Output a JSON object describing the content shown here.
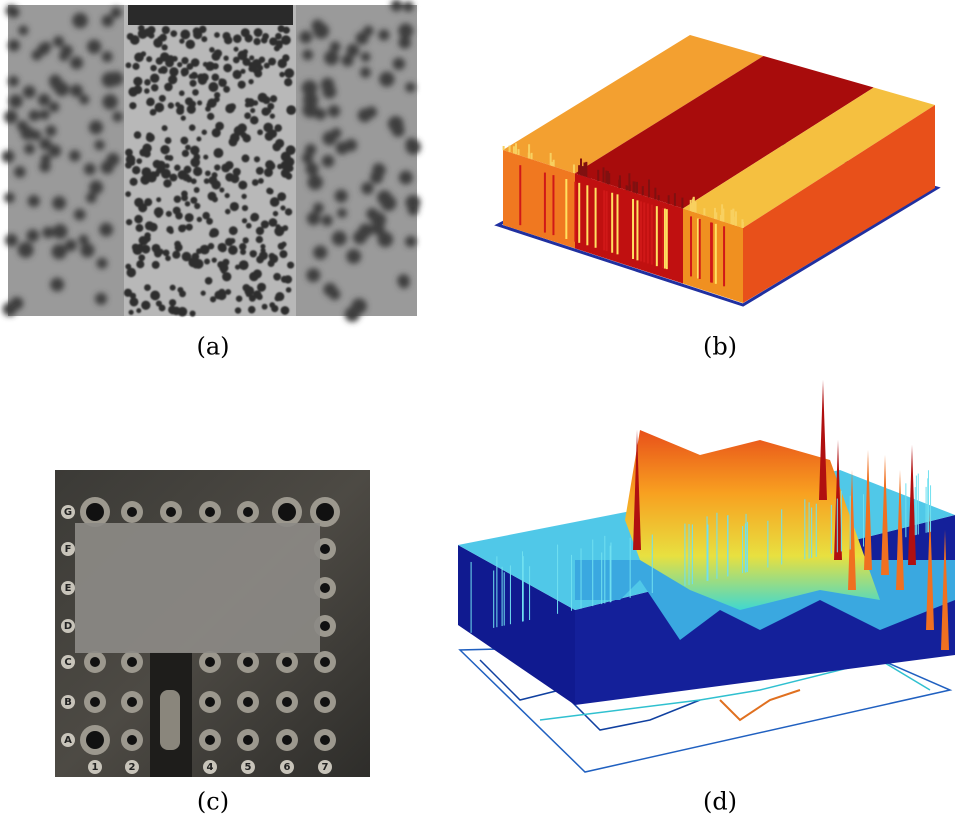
{
  "panels": [
    {
      "caption": "(a)"
    },
    {
      "caption": "(b)"
    },
    {
      "caption": "(c)",
      "row_labels": [
        "G",
        "F",
        "E",
        "D",
        "C",
        "B",
        "A"
      ],
      "column_labels": [
        "1",
        "2",
        "4",
        "5",
        "6",
        "7"
      ]
    },
    {
      "caption": "(d)"
    }
  ]
}
